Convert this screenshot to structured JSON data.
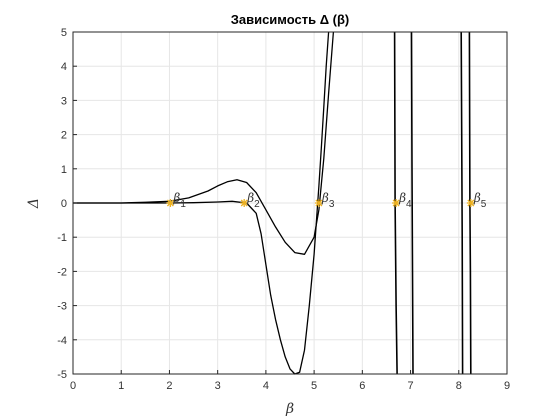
{
  "chart_data": {
    "type": "line",
    "title": "Зависимость Δ (β)",
    "xlabel": "β",
    "ylabel": "Δ",
    "xlim": [
      0,
      9
    ],
    "ylim": [
      -5,
      5
    ],
    "xticks": [
      0,
      1,
      2,
      3,
      4,
      5,
      6,
      7,
      8,
      9
    ],
    "yticks": [
      -5,
      -4,
      -3,
      -2,
      -1,
      0,
      1,
      2,
      3,
      4,
      5
    ],
    "grid": true,
    "colors": {
      "curves": "#000000",
      "roots": "#edb120",
      "grid": "#e6e6e6",
      "axes": "#262626"
    },
    "series": [
      {
        "x": [
          0,
          1,
          1.5,
          2,
          2.4,
          2.8,
          3.0,
          3.2,
          3.4,
          3.6,
          3.8,
          4.0,
          4.2,
          4.4,
          4.6,
          4.8,
          5.0,
          5.1,
          5.2,
          5.3,
          5.4
        ],
        "y": [
          0,
          0,
          0.02,
          0.05,
          0.15,
          0.35,
          0.5,
          0.62,
          0.68,
          0.6,
          0.3,
          -0.2,
          -0.7,
          -1.15,
          -1.45,
          -1.5,
          -1.0,
          -0.2,
          1.3,
          3.2,
          5.0
        ]
      },
      {
        "x": [
          0,
          2,
          2.5,
          3.0,
          3.3,
          3.6,
          3.8,
          3.9,
          4.0,
          4.1,
          4.2,
          4.3,
          4.4,
          4.5,
          4.6,
          4.7,
          4.8,
          4.9,
          5.0,
          5.05,
          5.1,
          5.15,
          5.2,
          5.25,
          5.3
        ],
        "y": [
          0,
          0,
          0.01,
          0.03,
          0.05,
          0.0,
          -0.3,
          -0.9,
          -1.8,
          -2.7,
          -3.4,
          -4.0,
          -4.5,
          -4.85,
          -5.0,
          -4.95,
          -4.3,
          -3.0,
          -1.5,
          -0.5,
          0.5,
          1.6,
          2.8,
          4.0,
          5.0
        ]
      },
      {
        "x": [
          6.67,
          6.68,
          6.7,
          6.72
        ],
        "y": [
          5,
          0,
          -3,
          -5
        ]
      },
      {
        "x": [
          7.02,
          7.03,
          7.04,
          7.05
        ],
        "y": [
          5,
          1,
          -2,
          -5
        ]
      },
      {
        "x": [
          8.05,
          8.06,
          8.07,
          8.08
        ],
        "y": [
          5,
          2,
          -1,
          -5
        ]
      },
      {
        "x": [
          8.22,
          8.23,
          8.24,
          8.25
        ],
        "y": [
          5,
          0,
          -2,
          -5
        ]
      }
    ],
    "roots": [
      {
        "x": 2.02,
        "y": 0,
        "label": "β",
        "sub": "1"
      },
      {
        "x": 3.55,
        "y": 0,
        "label": "β",
        "sub": "2"
      },
      {
        "x": 5.1,
        "y": 0,
        "label": "β",
        "sub": "3"
      },
      {
        "x": 6.7,
        "y": 0,
        "label": "β",
        "sub": "4"
      },
      {
        "x": 8.25,
        "y": 0,
        "label": "β",
        "sub": "5"
      }
    ]
  }
}
